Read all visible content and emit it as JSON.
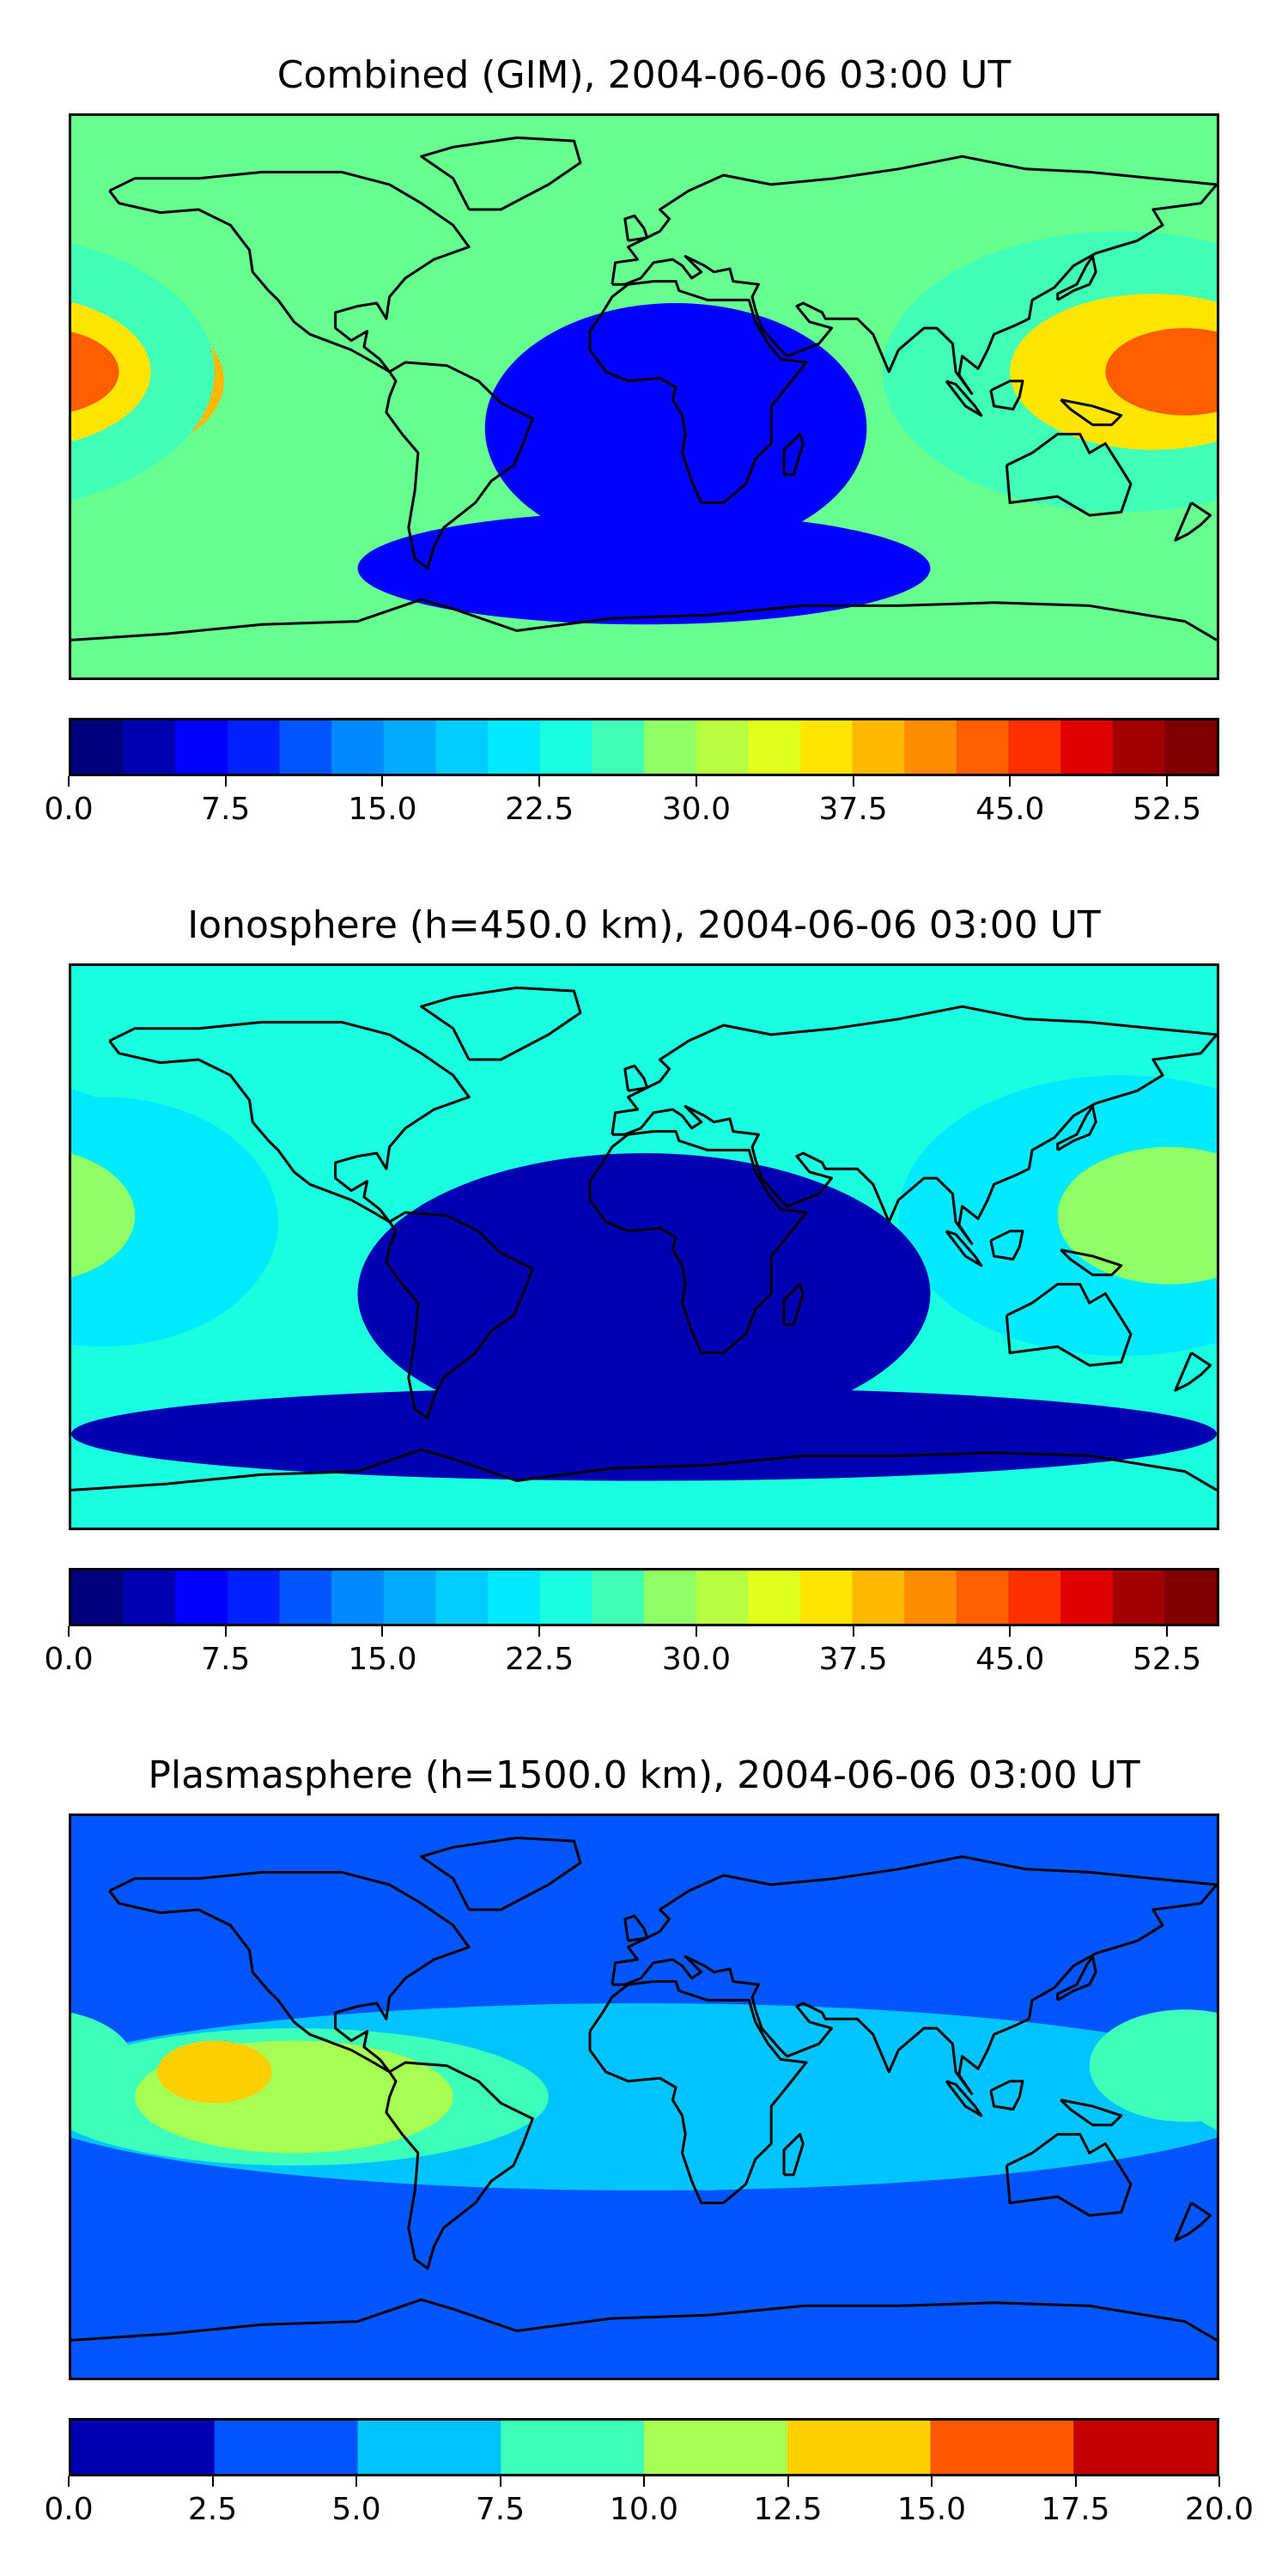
{
  "panels": [
    {
      "title": "Combined (GIM), 2004-06-06 03:00 UT",
      "colorbar": {
        "min": 0.0,
        "max": 55.0,
        "levels": 22,
        "ticks": [
          "0.0",
          "7.5",
          "15.0",
          "22.5",
          "30.0",
          "37.5",
          "45.0",
          "52.5"
        ],
        "tick_values": [
          0.0,
          7.5,
          15.0,
          22.5,
          30.0,
          37.5,
          45.0,
          52.5
        ]
      },
      "background_level": 11,
      "blobs": [
        {
          "lon": -170,
          "lat": 5,
          "rx": 70,
          "ry": 45,
          "value": 28
        },
        {
          "lon": -172,
          "lat": 5,
          "rx": 40,
          "ry": 25,
          "value": 42
        },
        {
          "lon": -175,
          "lat": 3,
          "rx": 22,
          "ry": 14,
          "value": 50
        },
        {
          "lon": 150,
          "lat": 8,
          "rx": 75,
          "ry": 45,
          "value": 27
        },
        {
          "lon": 160,
          "lat": 8,
          "rx": 45,
          "ry": 25,
          "value": 38
        },
        {
          "lon": 170,
          "lat": 8,
          "rx": 25,
          "ry": 14,
          "value": 45
        },
        {
          "lon": 10,
          "lat": -10,
          "rx": 60,
          "ry": 40,
          "value": 7
        },
        {
          "lon": 0,
          "lat": -55,
          "rx": 90,
          "ry": 18,
          "value": 5
        }
      ]
    },
    {
      "title": "Ionosphere  (h=450.0 km), 2004-06-06 03:00 UT",
      "colorbar": {
        "min": 0.0,
        "max": 55.0,
        "levels": 22,
        "ticks": [
          "0.0",
          "7.5",
          "15.0",
          "22.5",
          "30.0",
          "37.5",
          "45.0",
          "52.5"
        ],
        "tick_values": [
          0.0,
          7.5,
          15.0,
          22.5,
          30.0,
          37.5,
          45.0,
          52.5
        ]
      },
      "background_level": 9,
      "blobs": [
        {
          "lon": -170,
          "lat": 8,
          "rx": 55,
          "ry": 40,
          "value": 22
        },
        {
          "lon": -172,
          "lat": 8,
          "rx": 30,
          "ry": 22,
          "value": 31
        },
        {
          "lon": 150,
          "lat": 10,
          "rx": 70,
          "ry": 45,
          "value": 22
        },
        {
          "lon": 165,
          "lat": 10,
          "rx": 35,
          "ry": 22,
          "value": 32
        },
        {
          "lon": 0,
          "lat": -15,
          "rx": 90,
          "ry": 45,
          "value": 4
        },
        {
          "lon": 0,
          "lat": -60,
          "rx": 180,
          "ry": 15,
          "value": 3
        }
      ]
    },
    {
      "title": "Plasmasphere (h=1500.0 km), 2004-06-06 03:00 UT",
      "colorbar": {
        "min": 0.0,
        "max": 20.0,
        "levels": 8,
        "ticks": [
          "0.0",
          "2.5",
          "5.0",
          "7.5",
          "10.0",
          "12.5",
          "15.0",
          "17.5",
          "20.0"
        ],
        "tick_values": [
          0.0,
          2.5,
          5.0,
          7.5,
          10.0,
          12.5,
          15.0,
          17.5,
          20.0
        ]
      },
      "background_level": 1,
      "blobs": [
        {
          "lon": 0,
          "lat": 0,
          "rx": 200,
          "ry": 30,
          "value": 6
        },
        {
          "lon": -110,
          "lat": 0,
          "rx": 80,
          "ry": 22,
          "value": 9
        },
        {
          "lon": -110,
          "lat": 0,
          "rx": 50,
          "ry": 18,
          "value": 11
        },
        {
          "lon": -135,
          "lat": 8,
          "rx": 18,
          "ry": 10,
          "value": 14
        },
        {
          "lon": 170,
          "lat": 10,
          "rx": 30,
          "ry": 18,
          "value": 9
        },
        {
          "lon": 20,
          "lat": -12,
          "rx": 25,
          "ry": 18,
          "value": 7
        }
      ]
    }
  ],
  "colormap": [
    "#00007f",
    "#0000b2",
    "#0000ff",
    "#0022ff",
    "#0055ff",
    "#0088ff",
    "#00aaff",
    "#00ccff",
    "#00eaff",
    "#1affe0",
    "#40ffb7",
    "#66ff90",
    "#90ff66",
    "#b7ff40",
    "#e0ff1a",
    "#ffe500",
    "#ffb800",
    "#ff8c00",
    "#ff5e00",
    "#ff3000",
    "#e00000",
    "#a00000",
    "#7f0000"
  ],
  "colormap_plasma": [
    "#0000b2",
    "#0055ff",
    "#00c4ff",
    "#3dffba",
    "#a6ff52",
    "#ffd000",
    "#ff5800",
    "#c40000"
  ]
}
